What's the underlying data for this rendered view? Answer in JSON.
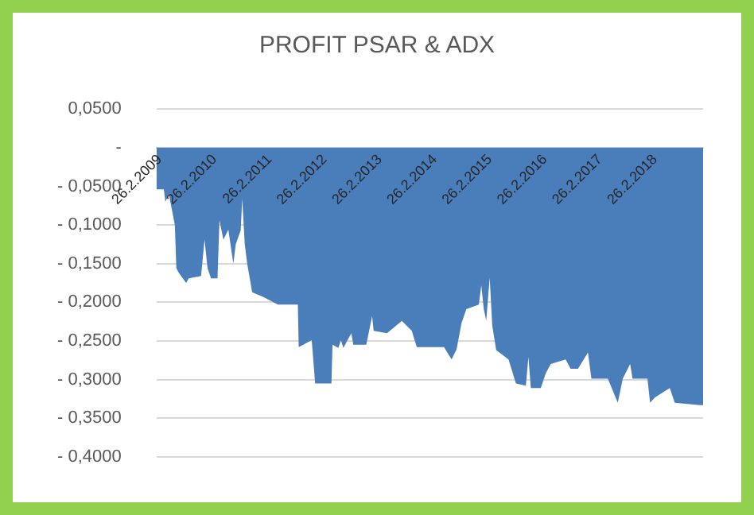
{
  "chart_data": {
    "type": "area",
    "title": "PROFIT PSAR & ADX",
    "color": "#4a7ebb",
    "marker": "none",
    "grid": "y",
    "legend": false,
    "x": [
      "2009-02-26",
      "2009-04-16",
      "2009-04-26",
      "2009-05-19",
      "2009-06-28",
      "2009-07-08",
      "2009-07-24",
      "2009-09-11",
      "2009-09-28",
      "2009-12-19",
      "2010-01-11",
      "2010-01-31",
      "2010-02-23",
      "2010-04-07",
      "2010-04-20",
      "2010-05-16",
      "2010-06-18",
      "2010-07-21",
      "2010-08-06",
      "2010-09-08",
      "2010-09-18",
      "2010-10-05",
      "2010-10-21",
      "2010-11-23",
      "2011-02-03",
      "2011-05-13",
      "2011-09-22",
      "2011-09-28",
      "2011-12-23",
      "2012-01-15",
      "2012-05-02",
      "2012-05-09",
      "2012-06-17",
      "2012-07-04",
      "2012-07-20",
      "2012-09-11",
      "2012-09-24",
      "2012-12-19",
      "2013-01-27",
      "2013-02-06",
      "2013-05-06",
      "2013-08-12",
      "2013-10-17",
      "2013-11-19",
      "2014-05-19",
      "2014-07-08",
      "2014-08-10",
      "2014-09-12",
      "2014-10-14",
      "2015-01-05",
      "2015-01-21",
      "2015-02-07",
      "2015-02-23",
      "2015-03-18",
      "2015-04-04",
      "2015-04-30",
      "2015-07-21",
      "2015-09-08",
      "2015-11-13",
      "2015-11-30",
      "2015-12-16",
      "2016-02-20",
      "2016-03-24",
      "2016-04-26",
      "2016-08-03",
      "2016-09-05",
      "2016-10-24",
      "2016-12-29",
      "2017-01-21",
      "2017-05-10",
      "2017-07-15",
      "2017-08-17",
      "2017-10-05",
      "2017-10-21",
      "2018-01-28",
      "2018-02-14",
      "2018-03-19",
      "2018-06-25",
      "2018-07-28",
      "2019-01-09",
      "2019-02-01"
    ],
    "values": [
      -0.054,
      -0.054,
      -0.07,
      -0.06,
      -0.1,
      -0.156,
      -0.162,
      -0.175,
      -0.169,
      -0.166,
      -0.119,
      -0.156,
      -0.169,
      -0.169,
      -0.094,
      -0.119,
      -0.106,
      -0.15,
      -0.125,
      -0.107,
      -0.066,
      -0.125,
      -0.15,
      -0.187,
      -0.193,
      -0.203,
      -0.203,
      -0.258,
      -0.249,
      -0.305,
      -0.305,
      -0.255,
      -0.259,
      -0.249,
      -0.259,
      -0.24,
      -0.255,
      -0.255,
      -0.218,
      -0.237,
      -0.24,
      -0.224,
      -0.237,
      -0.258,
      -0.258,
      -0.274,
      -0.261,
      -0.227,
      -0.209,
      -0.203,
      -0.178,
      -0.209,
      -0.224,
      -0.168,
      -0.23,
      -0.262,
      -0.274,
      -0.305,
      -0.308,
      -0.271,
      -0.311,
      -0.311,
      -0.292,
      -0.28,
      -0.274,
      -0.286,
      -0.286,
      -0.265,
      -0.299,
      -0.299,
      -0.33,
      -0.299,
      -0.28,
      -0.299,
      -0.299,
      -0.33,
      -0.323,
      -0.311,
      -0.33,
      -0.333,
      -0.333
    ],
    "xlim": [
      "2009-02-26",
      "2019-02-01"
    ],
    "xticks": [
      {
        "value": "2009-02-26",
        "label": "26.2.2009"
      },
      {
        "value": "2010-02-26",
        "label": "26.2.2010"
      },
      {
        "value": "2011-02-26",
        "label": "26.2.2011"
      },
      {
        "value": "2012-02-26",
        "label": "26.2.2012"
      },
      {
        "value": "2013-02-26",
        "label": "26.2.2013"
      },
      {
        "value": "2014-02-26",
        "label": "26.2.2014"
      },
      {
        "value": "2015-02-26",
        "label": "26.2.2015"
      },
      {
        "value": "2016-02-26",
        "label": "26.2.2016"
      },
      {
        "value": "2017-02-26",
        "label": "26.2.2017"
      },
      {
        "value": "2018-02-26",
        "label": "26.2.2018"
      }
    ],
    "ylim": [
      -0.4,
      0.05
    ],
    "yticks": [
      {
        "value": 0.05,
        "label": "0,0500"
      },
      {
        "value": 0,
        "label": "-"
      },
      {
        "value": -0.05,
        "label": "- 0,0500"
      },
      {
        "value": -0.1,
        "label": "- 0,1000"
      },
      {
        "value": -0.15,
        "label": "- 0,1500"
      },
      {
        "value": -0.2,
        "label": "- 0,2000"
      },
      {
        "value": -0.25,
        "label": "- 0,2500"
      },
      {
        "value": -0.3,
        "label": "- 0,3000"
      },
      {
        "value": -0.35,
        "label": "- 0,3500"
      },
      {
        "value": -0.4,
        "label": "- 0,4000"
      }
    ]
  }
}
